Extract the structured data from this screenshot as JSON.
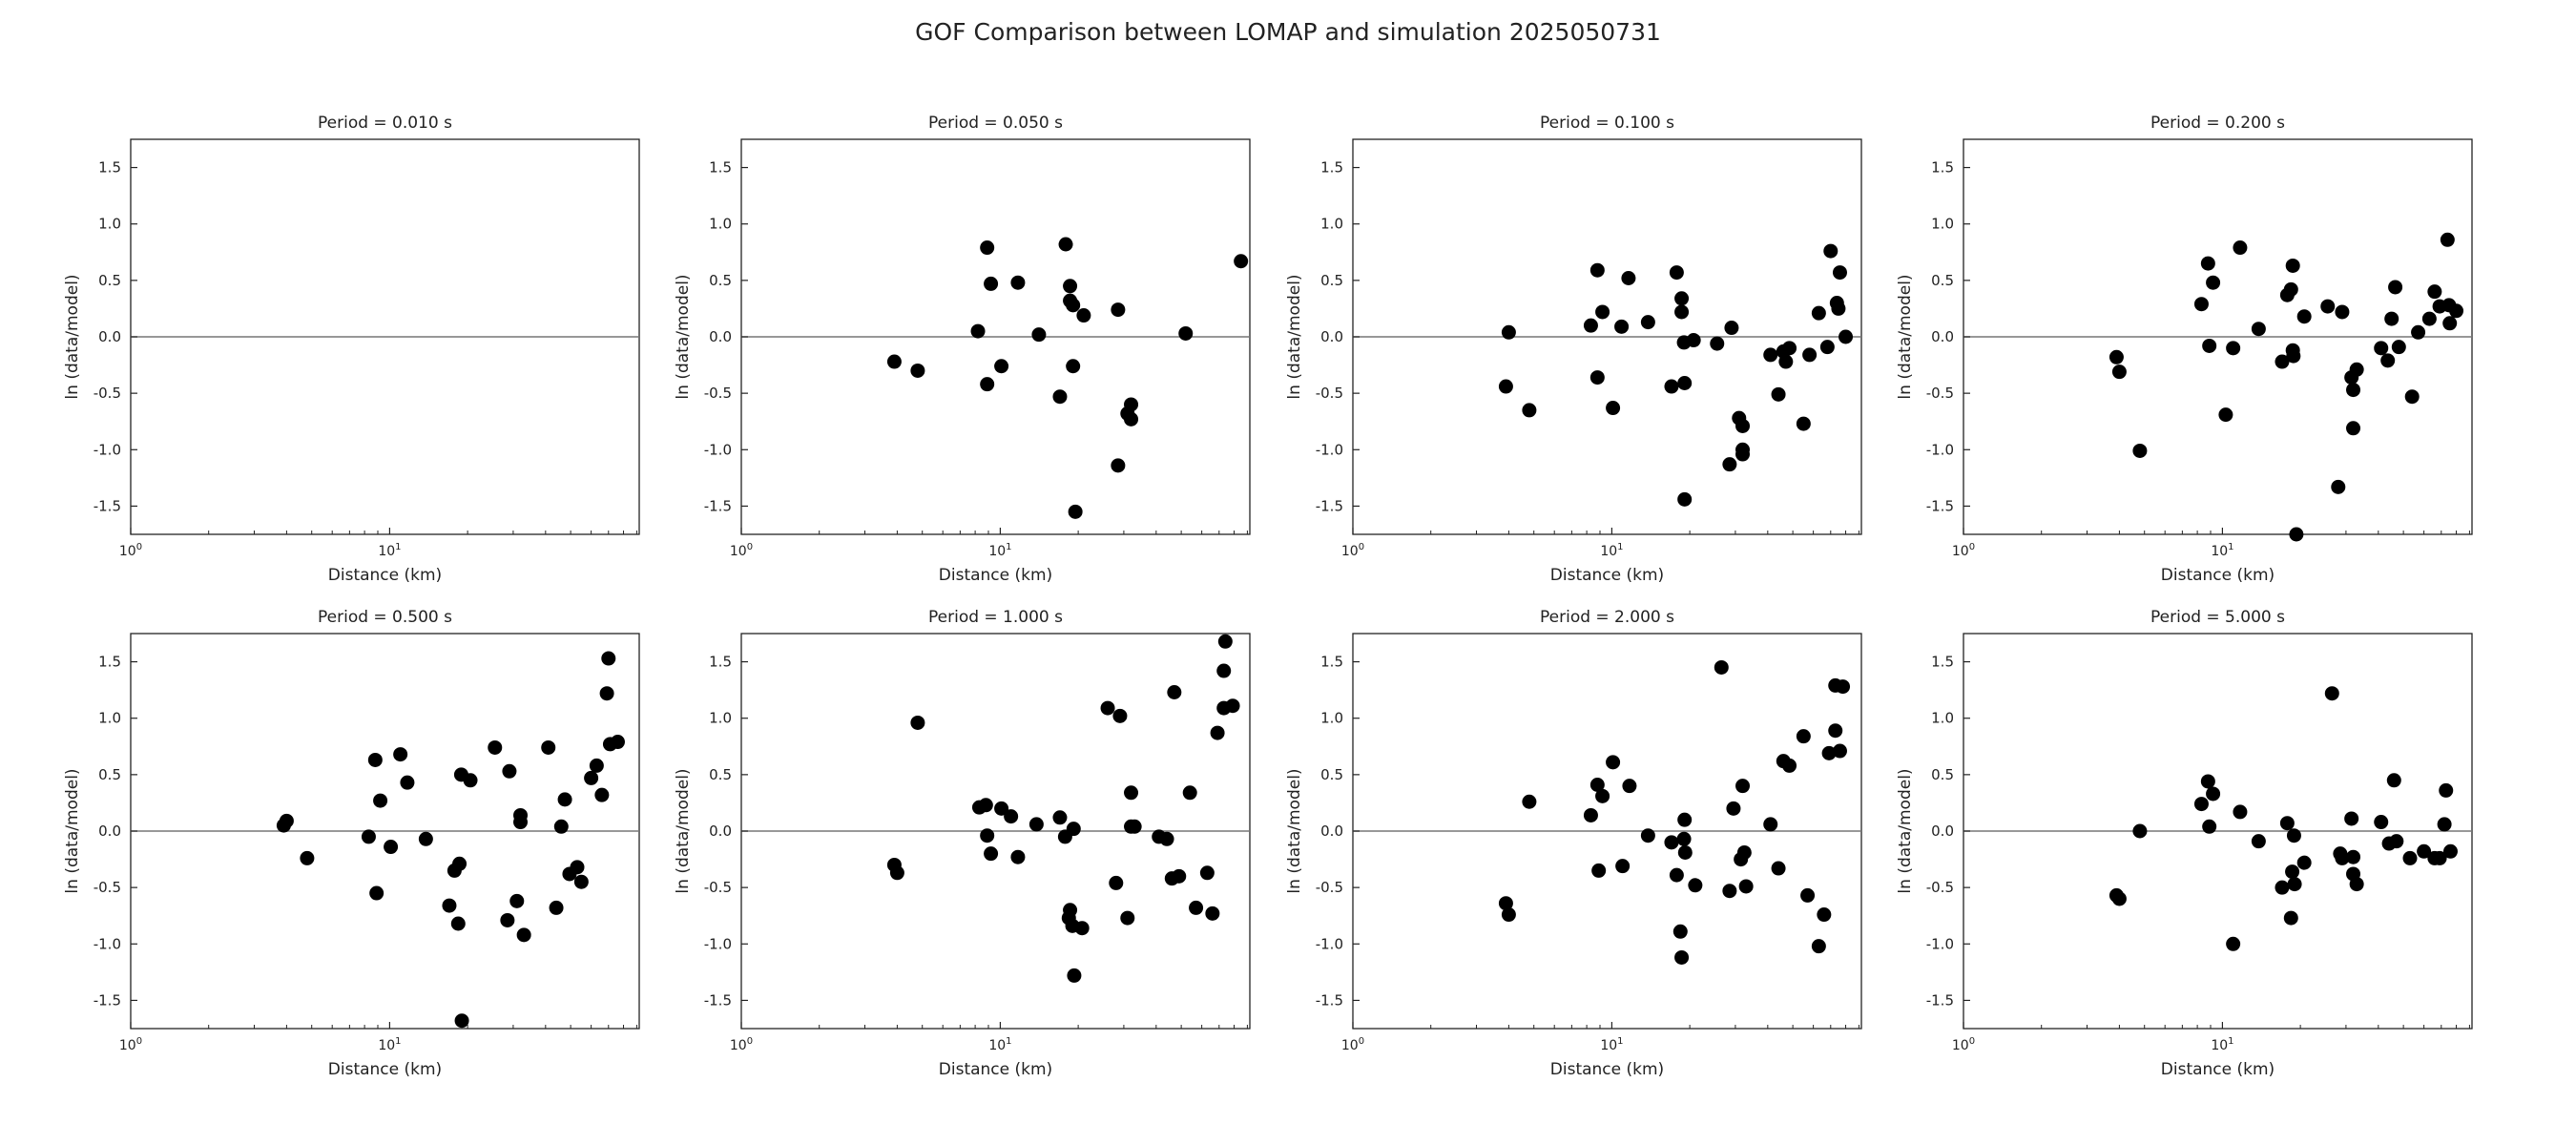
{
  "figure": {
    "title": "GOF Comparison between LOMAP and simulation 2025050731"
  },
  "chart_data": [
    {
      "type": "scatter",
      "title": "Period = 0.010 s",
      "xlabel": "Distance (km)",
      "ylabel": "ln (data/model)",
      "xscale": "log",
      "xlim": [
        1,
        92
      ],
      "ylim": [
        -1.75,
        1.75
      ],
      "xticks": [
        "10^0",
        "10^1"
      ],
      "yticks": [
        -1.5,
        -1.0,
        -0.5,
        0.0,
        0.5,
        1.0,
        1.5
      ],
      "reference_line": 0.0,
      "points": []
    },
    {
      "type": "scatter",
      "title": "Period = 0.050 s",
      "xlabel": "Distance (km)",
      "ylabel": "ln (data/model)",
      "xscale": "log",
      "xlim": [
        1,
        92
      ],
      "ylim": [
        -1.75,
        1.75
      ],
      "xticks": [
        "10^0",
        "10^1"
      ],
      "yticks": [
        -1.5,
        -1.0,
        -0.5,
        0.0,
        0.5,
        1.0,
        1.5
      ],
      "reference_line": 0.0,
      "points": [
        [
          3.9,
          -0.22
        ],
        [
          4.8,
          -0.3
        ],
        [
          8.2,
          0.05
        ],
        [
          8.9,
          0.79
        ],
        [
          8.9,
          -0.42
        ],
        [
          9.2,
          0.47
        ],
        [
          10.1,
          -0.26
        ],
        [
          11.7,
          0.48
        ],
        [
          14.1,
          0.02
        ],
        [
          17.0,
          -0.53
        ],
        [
          17.9,
          0.82
        ],
        [
          18.6,
          0.45
        ],
        [
          18.6,
          0.32
        ],
        [
          19.1,
          0.28
        ],
        [
          19.1,
          -0.26
        ],
        [
          19.5,
          -1.55
        ],
        [
          21.0,
          0.19
        ],
        [
          28.5,
          0.24
        ],
        [
          28.5,
          -1.14
        ],
        [
          31.0,
          -0.68
        ],
        [
          32.0,
          -0.6
        ],
        [
          32.0,
          -0.73
        ],
        [
          52.0,
          0.03
        ],
        [
          85.0,
          0.67
        ]
      ]
    },
    {
      "type": "scatter",
      "title": "Period = 0.100 s",
      "xlabel": "Distance (km)",
      "ylabel": "ln (data/model)",
      "xscale": "log",
      "xlim": [
        1,
        92
      ],
      "ylim": [
        -1.75,
        1.75
      ],
      "xticks": [
        "10^0",
        "10^1"
      ],
      "yticks": [
        -1.5,
        -1.0,
        -0.5,
        0.0,
        0.5,
        1.0,
        1.5
      ],
      "reference_line": 0.0,
      "points": [
        [
          3.9,
          -0.44
        ],
        [
          4.0,
          0.04
        ],
        [
          4.8,
          -0.65
        ],
        [
          8.3,
          0.1
        ],
        [
          8.8,
          0.59
        ],
        [
          8.8,
          -0.36
        ],
        [
          9.2,
          0.22
        ],
        [
          10.1,
          -0.63
        ],
        [
          10.9,
          0.09
        ],
        [
          11.6,
          0.52
        ],
        [
          13.8,
          0.13
        ],
        [
          17.0,
          -0.44
        ],
        [
          17.8,
          0.57
        ],
        [
          18.6,
          0.22
        ],
        [
          18.6,
          0.34
        ],
        [
          19.0,
          -0.05
        ],
        [
          19.1,
          -0.41
        ],
        [
          19.1,
          -1.44
        ],
        [
          20.7,
          -0.03
        ],
        [
          25.5,
          -0.06
        ],
        [
          28.5,
          -1.13
        ],
        [
          29.0,
          0.08
        ],
        [
          31.0,
          -0.72
        ],
        [
          32.0,
          -0.79
        ],
        [
          32.0,
          -1.0
        ],
        [
          32.0,
          -1.04
        ],
        [
          41.0,
          -0.16
        ],
        [
          44.0,
          -0.51
        ],
        [
          46.0,
          -0.13
        ],
        [
          47.0,
          -0.22
        ],
        [
          48.5,
          -0.1
        ],
        [
          55.0,
          -0.77
        ],
        [
          58.0,
          -0.16
        ],
        [
          63.0,
          0.21
        ],
        [
          68.0,
          -0.09
        ],
        [
          70.0,
          0.76
        ],
        [
          74.0,
          0.3
        ],
        [
          75.0,
          0.25
        ],
        [
          76.0,
          0.57
        ],
        [
          80.0,
          0.0
        ]
      ]
    },
    {
      "type": "scatter",
      "title": "Period = 0.200 s",
      "xlabel": "Distance (km)",
      "ylabel": "ln (data/model)",
      "xscale": "log",
      "xlim": [
        1,
        92
      ],
      "ylim": [
        -1.75,
        1.75
      ],
      "xticks": [
        "10^0",
        "10^1"
      ],
      "yticks": [
        -1.5,
        -1.0,
        -0.5,
        0.0,
        0.5,
        1.0,
        1.5
      ],
      "reference_line": 0.0,
      "points": [
        [
          3.9,
          -0.18
        ],
        [
          4.0,
          -0.31
        ],
        [
          4.8,
          -1.01
        ],
        [
          8.3,
          0.29
        ],
        [
          8.8,
          0.65
        ],
        [
          8.9,
          -0.08
        ],
        [
          9.2,
          0.48
        ],
        [
          10.3,
          -0.69
        ],
        [
          11.0,
          -0.1
        ],
        [
          11.7,
          0.79
        ],
        [
          13.8,
          0.07
        ],
        [
          17.0,
          -0.22
        ],
        [
          17.8,
          0.37
        ],
        [
          18.4,
          0.42
        ],
        [
          18.7,
          0.63
        ],
        [
          18.7,
          -0.12
        ],
        [
          18.8,
          -0.17
        ],
        [
          19.3,
          -1.75
        ],
        [
          20.7,
          0.18
        ],
        [
          25.5,
          0.27
        ],
        [
          28.0,
          -1.33
        ],
        [
          29.0,
          0.22
        ],
        [
          31.5,
          -0.36
        ],
        [
          32.0,
          -0.47
        ],
        [
          32.0,
          -0.81
        ],
        [
          33.0,
          -0.29
        ],
        [
          41.0,
          -0.1
        ],
        [
          43.5,
          -0.21
        ],
        [
          45.0,
          0.16
        ],
        [
          46.5,
          0.44
        ],
        [
          48.0,
          -0.09
        ],
        [
          54.0,
          -0.53
        ],
        [
          57.0,
          0.04
        ],
        [
          63.0,
          0.16
        ],
        [
          66.0,
          0.4
        ],
        [
          69.0,
          0.27
        ],
        [
          74.0,
          0.86
        ],
        [
          75.0,
          0.28
        ],
        [
          75.5,
          0.12
        ],
        [
          80.0,
          0.23
        ]
      ]
    },
    {
      "type": "scatter",
      "title": "Period = 0.500 s",
      "xlabel": "Distance (km)",
      "ylabel": "ln (data/model)",
      "xscale": "log",
      "xlim": [
        1,
        92
      ],
      "ylim": [
        -1.75,
        1.75
      ],
      "xticks": [
        "10^0",
        "10^1"
      ],
      "yticks": [
        -1.5,
        -1.0,
        -0.5,
        0.0,
        0.5,
        1.0,
        1.5
      ],
      "reference_line": 0.0,
      "points": [
        [
          3.9,
          0.05
        ],
        [
          4.0,
          0.09
        ],
        [
          4.8,
          -0.24
        ],
        [
          8.3,
          -0.05
        ],
        [
          8.8,
          0.63
        ],
        [
          8.9,
          -0.55
        ],
        [
          9.2,
          0.27
        ],
        [
          10.1,
          -0.14
        ],
        [
          11.0,
          0.68
        ],
        [
          11.7,
          0.43
        ],
        [
          13.8,
          -0.07
        ],
        [
          17.0,
          -0.66
        ],
        [
          17.8,
          -0.35
        ],
        [
          18.4,
          -0.82
        ],
        [
          18.6,
          -0.29
        ],
        [
          18.9,
          0.5
        ],
        [
          19.0,
          -1.68
        ],
        [
          20.5,
          0.45
        ],
        [
          25.5,
          0.74
        ],
        [
          28.5,
          -0.79
        ],
        [
          29.0,
          0.53
        ],
        [
          31.0,
          -0.62
        ],
        [
          32.0,
          0.14
        ],
        [
          32.0,
          0.08
        ],
        [
          33.0,
          -0.92
        ],
        [
          41.0,
          0.74
        ],
        [
          44.0,
          -0.68
        ],
        [
          46.0,
          0.04
        ],
        [
          47.5,
          0.28
        ],
        [
          49.5,
          -0.38
        ],
        [
          53.0,
          -0.32
        ],
        [
          55.0,
          -0.45
        ],
        [
          60.0,
          0.47
        ],
        [
          63.0,
          0.58
        ],
        [
          66.0,
          0.32
        ],
        [
          69.0,
          1.22
        ],
        [
          70.0,
          1.53
        ],
        [
          71.0,
          0.77
        ],
        [
          76.0,
          0.79
        ]
      ]
    },
    {
      "type": "scatter",
      "title": "Period = 1.000 s",
      "xlabel": "Distance (km)",
      "ylabel": "ln (data/model)",
      "xscale": "log",
      "xlim": [
        1,
        92
      ],
      "ylim": [
        -1.75,
        1.75
      ],
      "xticks": [
        "10^0",
        "10^1"
      ],
      "yticks": [
        -1.5,
        -1.0,
        -0.5,
        0.0,
        0.5,
        1.0,
        1.5
      ],
      "reference_line": 0.0,
      "points": [
        [
          3.9,
          -0.3
        ],
        [
          4.0,
          -0.37
        ],
        [
          4.8,
          0.96
        ],
        [
          8.3,
          0.21
        ],
        [
          8.8,
          0.23
        ],
        [
          8.9,
          -0.04
        ],
        [
          9.2,
          -0.2
        ],
        [
          10.1,
          0.2
        ],
        [
          11.0,
          0.13
        ],
        [
          11.7,
          -0.23
        ],
        [
          13.8,
          0.06
        ],
        [
          17.0,
          0.12
        ],
        [
          17.8,
          -0.05
        ],
        [
          18.4,
          -0.77
        ],
        [
          18.6,
          -0.7
        ],
        [
          19.0,
          -0.84
        ],
        [
          19.2,
          0.02
        ],
        [
          19.3,
          -1.28
        ],
        [
          20.7,
          -0.86
        ],
        [
          26.0,
          1.09
        ],
        [
          28.0,
          -0.46
        ],
        [
          29.0,
          1.02
        ],
        [
          31.0,
          -0.77
        ],
        [
          32.0,
          0.34
        ],
        [
          32.0,
          0.04
        ],
        [
          33.0,
          0.04
        ],
        [
          41.0,
          -0.05
        ],
        [
          44.0,
          -0.07
        ],
        [
          46.0,
          -0.42
        ],
        [
          47.0,
          1.23
        ],
        [
          49.0,
          -0.4
        ],
        [
          54.0,
          0.34
        ],
        [
          57.0,
          -0.68
        ],
        [
          63.0,
          -0.37
        ],
        [
          66.0,
          -0.73
        ],
        [
          69.0,
          0.87
        ],
        [
          73.0,
          1.42
        ],
        [
          73.0,
          1.09
        ],
        [
          74.0,
          1.68
        ],
        [
          79.0,
          1.11
        ]
      ]
    },
    {
      "type": "scatter",
      "title": "Period = 2.000 s",
      "xlabel": "Distance (km)",
      "ylabel": "ln (data/model)",
      "xscale": "log",
      "xlim": [
        1,
        92
      ],
      "ylim": [
        -1.75,
        1.75
      ],
      "xticks": [
        "10^0",
        "10^1"
      ],
      "yticks": [
        -1.5,
        -1.0,
        -0.5,
        0.0,
        0.5,
        1.0,
        1.5
      ],
      "reference_line": 0.0,
      "points": [
        [
          3.9,
          -0.64
        ],
        [
          4.0,
          -0.74
        ],
        [
          4.8,
          0.26
        ],
        [
          8.3,
          0.14
        ],
        [
          8.8,
          0.41
        ],
        [
          8.9,
          -0.35
        ],
        [
          9.2,
          0.31
        ],
        [
          10.1,
          0.61
        ],
        [
          11.0,
          -0.31
        ],
        [
          11.7,
          0.4
        ],
        [
          13.8,
          -0.04
        ],
        [
          17.0,
          -0.1
        ],
        [
          17.8,
          -0.39
        ],
        [
          18.4,
          -0.89
        ],
        [
          18.6,
          -1.12
        ],
        [
          19.0,
          -0.07
        ],
        [
          19.1,
          0.1
        ],
        [
          19.2,
          -0.19
        ],
        [
          21.0,
          -0.48
        ],
        [
          26.5,
          1.45
        ],
        [
          28.5,
          -0.53
        ],
        [
          29.5,
          0.2
        ],
        [
          31.5,
          -0.25
        ],
        [
          32.0,
          0.4
        ],
        [
          32.5,
          -0.19
        ],
        [
          33.0,
          -0.49
        ],
        [
          41.0,
          0.06
        ],
        [
          44.0,
          -0.33
        ],
        [
          46.0,
          0.62
        ],
        [
          48.5,
          0.58
        ],
        [
          55.0,
          0.84
        ],
        [
          57.0,
          -0.57
        ],
        [
          63.0,
          -1.02
        ],
        [
          66.0,
          -0.74
        ],
        [
          69.0,
          0.69
        ],
        [
          73.0,
          0.89
        ],
        [
          73.0,
          1.29
        ],
        [
          76.0,
          0.71
        ],
        [
          78.0,
          1.28
        ]
      ]
    },
    {
      "type": "scatter",
      "title": "Period = 5.000 s",
      "xlabel": "Distance (km)",
      "ylabel": "ln (data/model)",
      "xscale": "log",
      "xlim": [
        1,
        92
      ],
      "ylim": [
        -1.75,
        1.75
      ],
      "xticks": [
        "10^0",
        "10^1"
      ],
      "yticks": [
        -1.5,
        -1.0,
        -0.5,
        0.0,
        0.5,
        1.0,
        1.5
      ],
      "reference_line": 0.0,
      "points": [
        [
          3.9,
          -0.57
        ],
        [
          4.0,
          -0.6
        ],
        [
          4.8,
          0.0
        ],
        [
          8.3,
          0.24
        ],
        [
          8.8,
          0.44
        ],
        [
          8.9,
          0.04
        ],
        [
          9.2,
          0.33
        ],
        [
          11.0,
          -1.0
        ],
        [
          11.7,
          0.17
        ],
        [
          13.8,
          -0.09
        ],
        [
          17.0,
          -0.5
        ],
        [
          17.8,
          0.07
        ],
        [
          18.4,
          -0.77
        ],
        [
          18.6,
          -0.36
        ],
        [
          18.9,
          -0.04
        ],
        [
          19.0,
          -0.47
        ],
        [
          20.7,
          -0.28
        ],
        [
          26.5,
          1.22
        ],
        [
          28.5,
          -0.2
        ],
        [
          29.0,
          -0.24
        ],
        [
          31.5,
          0.11
        ],
        [
          32.0,
          -0.38
        ],
        [
          32.0,
          -0.23
        ],
        [
          33.0,
          -0.47
        ],
        [
          41.0,
          0.08
        ],
        [
          44.0,
          -0.11
        ],
        [
          46.0,
          0.45
        ],
        [
          47.0,
          -0.09
        ],
        [
          53.0,
          -0.24
        ],
        [
          60.0,
          -0.18
        ],
        [
          66.0,
          -0.24
        ],
        [
          69.0,
          -0.24
        ],
        [
          72.0,
          0.06
        ],
        [
          73.0,
          0.36
        ],
        [
          76.0,
          -0.18
        ]
      ]
    }
  ]
}
